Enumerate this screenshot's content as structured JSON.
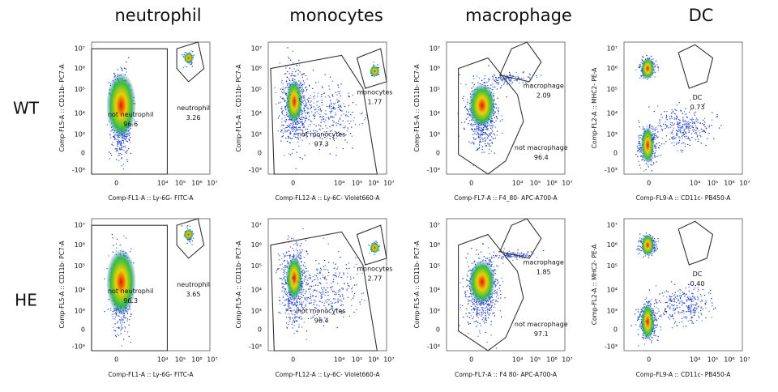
{
  "columns": [
    "neutrophil",
    "monocytes",
    "macrophage",
    "DC"
  ],
  "y_ticks": [
    "10⁷",
    "10⁶",
    "10⁵",
    "10⁴",
    "10³",
    "0",
    "-10³"
  ],
  "x_ticks": [
    "0",
    "10⁴",
    "10⁵",
    "10⁶",
    "10⁷"
  ],
  "rows": [
    {
      "label": "WT",
      "panels": [
        {
          "y_label": "Comp-FL5-A :: CD11b- PC7-A",
          "x_label": "Comp-FL1-A :: Ly-6G- FITC-A",
          "gates": [
            {
              "name": "not neutrophil",
              "percent": "96.6"
            },
            {
              "name": "neutrophil",
              "percent": "3.26"
            }
          ]
        },
        {
          "y_label": "Comp-FL5-A :: CD11b- PC7-A",
          "x_label": "Comp-FL12-A :: Ly-6C- Violet660-A",
          "gates": [
            {
              "name": "monocytes",
              "percent": "1.77"
            },
            {
              "name": "not monocytes",
              "percent": "97.3"
            }
          ]
        },
        {
          "y_label": "Comp-FL5-A :: CD11b- PC7-A",
          "x_label": "Comp-FL7-A :: F4_80- APC-A700-A",
          "gates": [
            {
              "name": "macrophage",
              "percent": "2.09"
            },
            {
              "name": "not macrophage",
              "percent": "96.4"
            }
          ]
        },
        {
          "y_label": "Comp-FL2-A :: MHC2- PE-A",
          "x_label": "Comp-FL9-A :: CD11c- PB450-A",
          "gates": [
            {
              "name": "DC",
              "percent": "0.73"
            }
          ]
        }
      ]
    },
    {
      "label": "HE",
      "panels": [
        {
          "y_label": "Comp-FL5-A :: CD11b- PC7-A",
          "x_label": "Comp-FL1-A :: Ly-6G- FITC-A",
          "gates": [
            {
              "name": "not neutrophil",
              "percent": "96.3"
            },
            {
              "name": "neutrophil",
              "percent": "3.65"
            }
          ]
        },
        {
          "y_label": "Comp-FL5-A :: CD11b- PC7-A",
          "x_label": "Comp-FL12-A :: Ly-6C- Violet660-A",
          "gates": [
            {
              "name": "monocytes",
              "percent": "2.77"
            },
            {
              "name": "not monocytes",
              "percent": "96.4"
            }
          ]
        },
        {
          "y_label": "Comp-FL5-A :: CD11b- PC7-A",
          "x_label": "Comp-FL7-A :: F4 80- APC-A700-A",
          "gates": [
            {
              "name": "macrophage",
              "percent": "1.85"
            },
            {
              "name": "not macrophage",
              "percent": "97.1"
            }
          ]
        },
        {
          "y_label": "Comp-FL2-A :: MHC2- PE-A",
          "x_label": "Comp-FL9-A :: CD11c- PB450-A",
          "gates": [
            {
              "name": "DC",
              "percent": "0.40"
            }
          ]
        }
      ]
    }
  ]
}
